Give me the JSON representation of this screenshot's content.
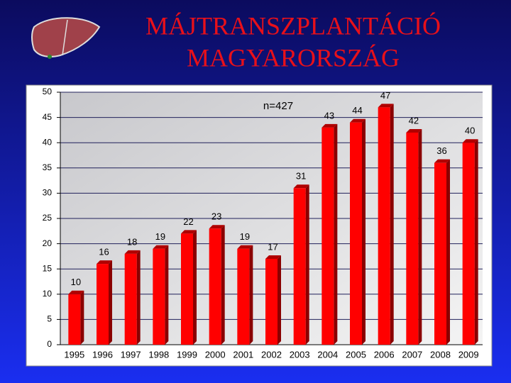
{
  "chart_data": {
    "type": "bar",
    "title": [
      "MÁJTRANSZPLANTÁCIÓ",
      "MAGYARORSZÁG"
    ],
    "annotation": "n=427",
    "categories": [
      "1995",
      "1996",
      "1997",
      "1998",
      "1999",
      "2000",
      "2001",
      "2002",
      "2003",
      "2004",
      "2005",
      "2006",
      "2007",
      "2008",
      "2009"
    ],
    "values": [
      10,
      16,
      18,
      19,
      22,
      23,
      19,
      17,
      31,
      43,
      44,
      47,
      42,
      36,
      40
    ],
    "color": "#ff0000",
    "ylim": [
      0,
      50
    ],
    "yticks": [
      0,
      5,
      10,
      15,
      20,
      25,
      30,
      35,
      40,
      45,
      50
    ],
    "grid": true
  }
}
